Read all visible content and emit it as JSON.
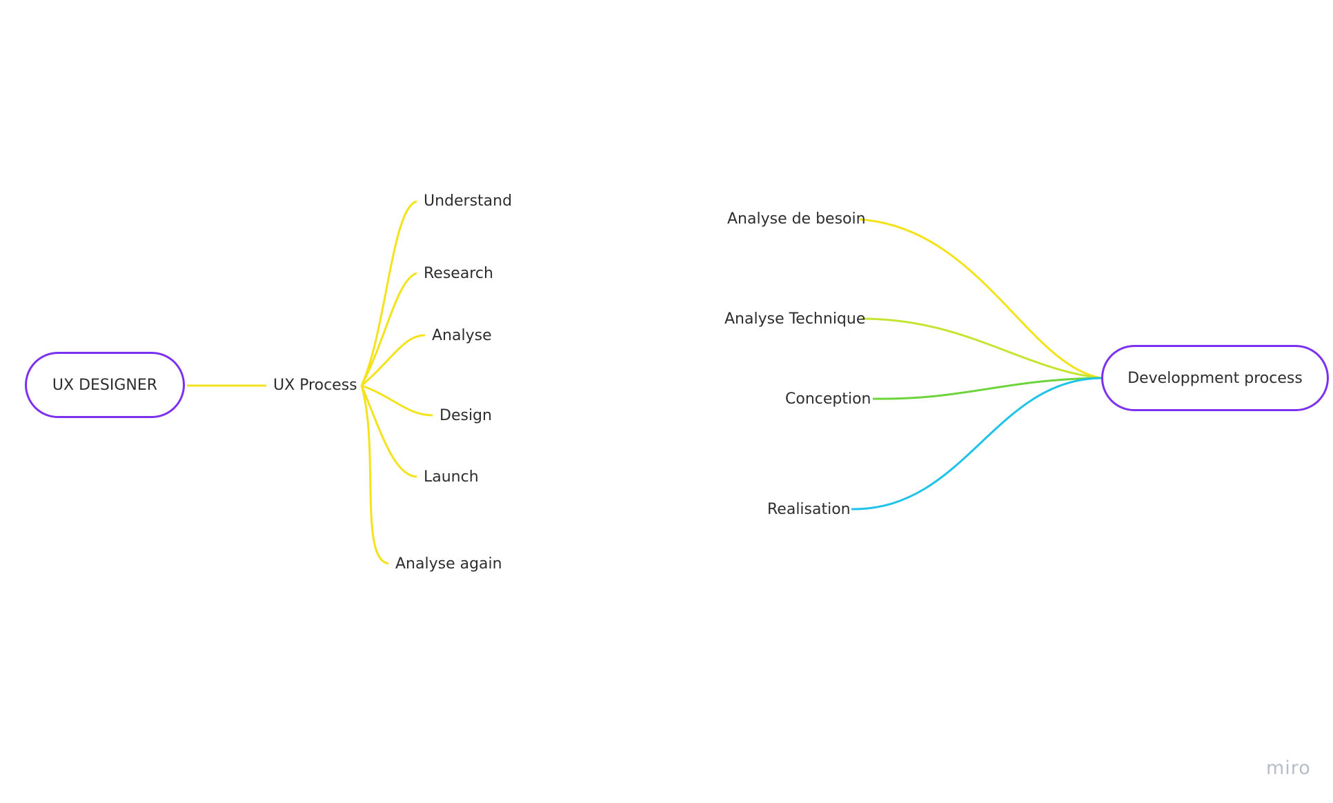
{
  "diagram": {
    "left_map": {
      "root": "UX DESIGNER",
      "hub": "UX Process",
      "branches": [
        "Understand",
        "Research",
        "Analyse",
        "Design",
        "Launch",
        "Analyse again"
      ],
      "line_color": "#f4e21a"
    },
    "right_map": {
      "root": "Developpment process",
      "branches": [
        {
          "label": "Analyse de besoin",
          "color": "#f4e21a"
        },
        {
          "label": "Analyse Technique",
          "color": "#c3e530"
        },
        {
          "label": "Conception",
          "color": "#6cd43a"
        },
        {
          "label": "Realisation",
          "color": "#1fc3ea"
        }
      ]
    },
    "node_border_color": "#7b2ff0"
  },
  "watermark": "miro"
}
